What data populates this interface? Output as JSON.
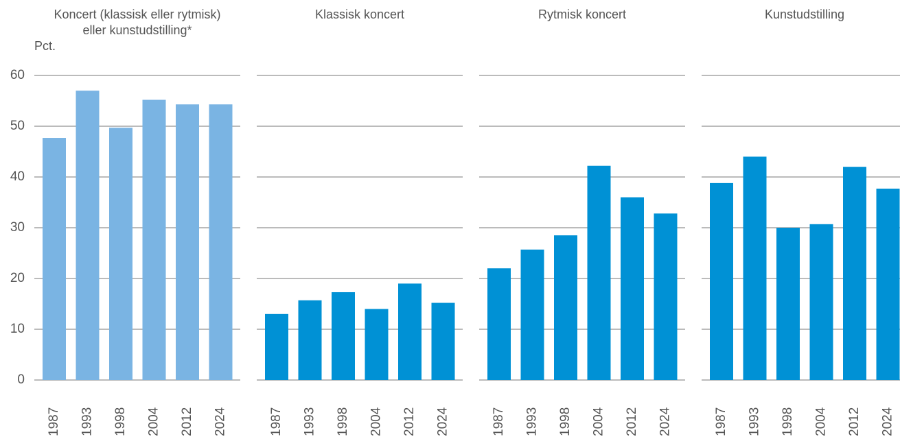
{
  "chart_data": [
    {
      "type": "bar",
      "title": [
        "Koncert (klassisk eller rytmisk)",
        "eller kunstudstilling*"
      ],
      "ylabel": "Pct.",
      "categories": [
        "1987",
        "1993",
        "1998",
        "2004",
        "2012",
        "2024"
      ],
      "values": [
        47.7,
        57,
        49.7,
        55.2,
        54.3,
        54.3
      ],
      "color": "#7ab4e3",
      "ylim": [
        0,
        60
      ],
      "yticks": [
        0,
        10,
        20,
        30,
        40,
        50,
        60
      ],
      "grid": true
    },
    {
      "type": "bar",
      "title": [
        "Klassisk koncert"
      ],
      "categories": [
        "1987",
        "1993",
        "1998",
        "2004",
        "2012",
        "2024"
      ],
      "values": [
        13,
        15.7,
        17.3,
        14,
        19,
        15.2
      ],
      "color": "#0091d5",
      "ylim": [
        0,
        60
      ],
      "yticks": [
        0,
        10,
        20,
        30,
        40,
        50,
        60
      ],
      "grid": true
    },
    {
      "type": "bar",
      "title": [
        "Rytmisk koncert"
      ],
      "categories": [
        "1987",
        "1993",
        "1998",
        "2004",
        "2012",
        "2024"
      ],
      "values": [
        22,
        25.7,
        28.5,
        42.2,
        36,
        32.8
      ],
      "color": "#0091d5",
      "ylim": [
        0,
        60
      ],
      "yticks": [
        0,
        10,
        20,
        30,
        40,
        50,
        60
      ],
      "grid": true
    },
    {
      "type": "bar",
      "title": [
        "Kunstudstilling"
      ],
      "categories": [
        "1987",
        "1993",
        "1998",
        "2004",
        "2012",
        "2024"
      ],
      "values": [
        38.8,
        44,
        30,
        30.7,
        42,
        37.7
      ],
      "color": "#0091d5",
      "ylim": [
        0,
        60
      ],
      "yticks": [
        0,
        10,
        20,
        30,
        40,
        50,
        60
      ],
      "grid": true
    }
  ]
}
